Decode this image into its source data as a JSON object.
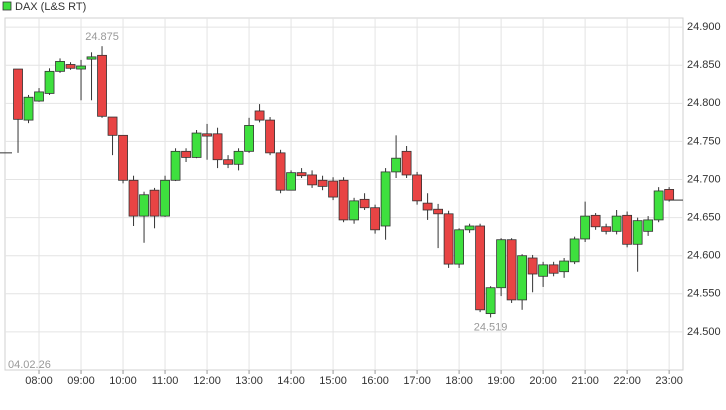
{
  "chart_data": {
    "type": "candlestick",
    "date": "04.02.26",
    "annotations": [
      "24.875",
      "24.519"
    ],
    "xlim": [
      7.19,
      23.33
    ],
    "ylim": [
      24450,
      24912
    ],
    "xticks": [
      {
        "value": 8,
        "label": "08:00"
      },
      {
        "value": 9,
        "label": "09:00"
      },
      {
        "value": 10,
        "label": "10:00"
      },
      {
        "value": 11,
        "label": "11:00"
      },
      {
        "value": 12,
        "label": "12:00"
      },
      {
        "value": 13,
        "label": "13:00"
      },
      {
        "value": 14,
        "label": "14:00"
      },
      {
        "value": 15,
        "label": "15:00"
      },
      {
        "value": 16,
        "label": "16:00"
      },
      {
        "value": 17,
        "label": "17:00"
      },
      {
        "value": 18,
        "label": "18:00"
      },
      {
        "value": 19,
        "label": "19:00"
      },
      {
        "value": 20,
        "label": "20:00"
      },
      {
        "value": 21,
        "label": "21:00"
      },
      {
        "value": 22,
        "label": "22:00"
      },
      {
        "value": 23,
        "label": "23:00"
      }
    ],
    "yticks": [
      {
        "value": 24500,
        "label": "24.500"
      },
      {
        "value": 24550,
        "label": "24.550"
      },
      {
        "value": 24600,
        "label": "24.600"
      },
      {
        "value": 24650,
        "label": "24.650"
      },
      {
        "value": 24700,
        "label": "24.700"
      },
      {
        "value": 24750,
        "label": "24.750"
      },
      {
        "value": 24800,
        "label": "24.800"
      },
      {
        "value": 24850,
        "label": "24.850"
      },
      {
        "value": 24900,
        "label": "24.900"
      }
    ],
    "grid": true,
    "legend": "top-left",
    "prev_close": 24735,
    "x": [
      7.5,
      7.75,
      8,
      8.25,
      8.5,
      8.75,
      9,
      9.25,
      9.5,
      9.75,
      10,
      10.25,
      10.5,
      10.75,
      11,
      11.25,
      11.5,
      11.75,
      12,
      12.25,
      12.5,
      12.75,
      13,
      13.25,
      13.5,
      13.75,
      14,
      14.25,
      14.5,
      14.75,
      15,
      15.25,
      15.5,
      15.75,
      16,
      16.25,
      16.5,
      16.75,
      17,
      17.25,
      17.5,
      17.75,
      18,
      18.25,
      18.5,
      18.75,
      19,
      19.25,
      19.5,
      19.75,
      20,
      20.25,
      20.5,
      20.75,
      21,
      21.25,
      21.5,
      21.75,
      22,
      22.25,
      22.5,
      22.75,
      23
    ],
    "series": [
      {
        "name": "DAX (L&S RT)",
        "color": "#3ee03e",
        "down_color": "#e84444",
        "open": [
          24845,
          24778,
          24803,
          24813,
          24842,
          24851,
          24845,
          24858,
          24863,
          24782,
          24758,
          24699,
          24652,
          24686,
          24652,
          24699,
          24737,
          24729,
          24760,
          24760,
          24726,
          24720,
          24737,
          24790,
          24778,
          24735,
          24686,
          24709,
          24706,
          24699,
          24698,
          24699,
          24647,
          24674,
          24663,
          24639,
          24710,
          24737,
          24706,
          24669,
          24661,
          24655,
          24589,
          24634,
          24639,
          24524,
          24558,
          24621,
          24542,
          24597,
          24573,
          24588,
          24579,
          24592,
          24622,
          24653,
          24638,
          24632,
          24653,
          24615,
          24632,
          24647,
          24687
        ],
        "high": [
          24845,
          24811,
          24820,
          24846,
          24859,
          24854,
          24857,
          24867,
          24875,
          24782,
          24758,
          24705,
          24684,
          24689,
          24705,
          24741,
          24741,
          24765,
          24773,
          24768,
          24732,
          24741,
          24781,
          24799,
          24782,
          24739,
          24712,
          24715,
          24712,
          24705,
          24703,
          24703,
          24676,
          24682,
          24667,
          24715,
          24758,
          24744,
          24710,
          24682,
          24668,
          24659,
          24636,
          24642,
          24642,
          24560,
          24623,
          24623,
          24602,
          24601,
          24592,
          24592,
          24597,
          24625,
          24671,
          24656,
          24642,
          24660,
          24658,
          24650,
          24652,
          24690,
          24690
        ],
        "low": [
          24735,
          24774,
          24802,
          24811,
          24840,
          24844,
          24804,
          24804,
          24781,
          24732,
          24695,
          24639,
          24617,
          24636,
          24651,
          24698,
          24723,
          24728,
          24726,
          24715,
          24715,
          24712,
          24735,
          24775,
          24732,
          24682,
          24686,
          24702,
          24689,
          24686,
          24673,
          24644,
          24642,
          24660,
          24629,
          24621,
          24702,
          24702,
          24667,
          24647,
          24610,
          24584,
          24584,
          24630,
          24526,
          24519,
          24547,
          24538,
          24529,
          24552,
          24559,
          24573,
          24571,
          24589,
          24618,
          24634,
          24628,
          24628,
          24611,
          24579,
          24626,
          24644,
          24671
        ],
        "close": [
          24779,
          24808,
          24815,
          24842,
          24855,
          24846,
          24849,
          24861,
          24783,
          24758,
          24699,
          24652,
          24680,
          24652,
          24699,
          24737,
          24729,
          24761,
          24757,
          24726,
          24720,
          24737,
          24771,
          24778,
          24735,
          24686,
          24709,
          24705,
          24693,
          24691,
          24677,
          24647,
          24672,
          24663,
          24634,
          24710,
          24728,
          24706,
          24672,
          24660,
          24655,
          24589,
          24634,
          24639,
          24529,
          24558,
          24621,
          24542,
          24600,
          24576,
          24588,
          24577,
          24593,
          24622,
          24652,
          24638,
          24632,
          24652,
          24615,
          24646,
          24647,
          24685,
          24673
        ]
      }
    ]
  }
}
